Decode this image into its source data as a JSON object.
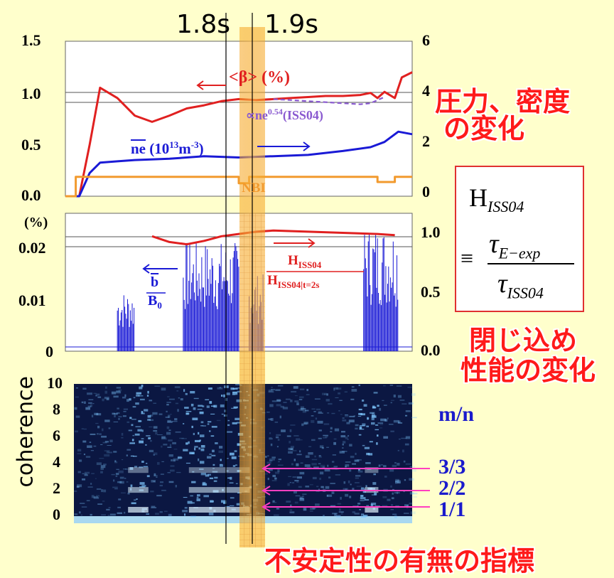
{
  "time_markers": [
    "1.8s",
    "1.9s"
  ],
  "colors": {
    "background": "#ffffcc",
    "beta": "#e02020",
    "density": "#1a1ad6",
    "nbi": "#f29a2e",
    "scaling": "#8a5ad0",
    "highlight": "#f5a623",
    "annotation": "#ff1a1a",
    "modes": "#1a1acc",
    "arrows": "#ff3fc0"
  },
  "panel1": {
    "left_ticks": [
      "1.5",
      "1.0",
      "0.5",
      "0.0"
    ],
    "right_ticks": [
      "6",
      "4",
      "2",
      "0"
    ],
    "beta_label": "<β> (%)",
    "scaling_label": "∝ne",
    "scaling_sup": "0.54",
    "scaling_tail": "(ISS04)",
    "density_label": "ne",
    "density_units": "(10",
    "density_exp": "13",
    "density_units2": "m",
    "density_exp2": "-3",
    "density_units3": ")",
    "nbi_label": "NBI"
  },
  "panel2": {
    "left_unit": "(%)",
    "left_ticks": [
      "0.02",
      "0.01",
      "0"
    ],
    "right_ticks": [
      "1.0",
      "0.5",
      "0.0"
    ],
    "b_num": "b",
    "b_den": "B",
    "b_den_sub": "0",
    "h_num": "H",
    "h_num_sub": "ISS04",
    "h_den": "H",
    "h_den_sub": "ISS04|t=2s"
  },
  "panel3": {
    "ylabel": "coherence",
    "ticks": [
      "10",
      "8",
      "6",
      "4",
      "2",
      "0"
    ],
    "modes_title": "m/n",
    "modes": [
      "3/3",
      "2/2",
      "1/1"
    ]
  },
  "annotations": {
    "pressure_density_1": "圧力、密度",
    "pressure_density_2": "の変化",
    "confinement_1": "閉じ込め",
    "confinement_2": "性能の変化",
    "instability": "不安定性の有無の指標"
  },
  "formula": {
    "h": "H",
    "h_sub": "ISS04",
    "equiv": "≡",
    "num": "τ",
    "num_sub": "E−exp",
    "den": "τ",
    "den_sub": "ISS04"
  },
  "chart_data": [
    {
      "type": "line",
      "title": "",
      "ylabel_left": "",
      "ylabel_right": "",
      "ylim_left": [
        0,
        1.5
      ],
      "ylim_right": [
        0,
        6
      ],
      "series": [
        {
          "name": "<β> (%)",
          "axis": "left",
          "x": [
            0.01,
            0.04,
            0.07,
            0.1,
            0.15,
            0.2,
            0.25,
            0.3,
            0.35,
            0.4,
            0.45,
            0.5,
            0.55,
            0.6,
            0.65,
            0.7,
            0.75,
            0.8,
            0.85,
            0.88,
            0.9,
            0.92,
            0.95,
            0.97,
            1.0
          ],
          "values": [
            0,
            0,
            0.5,
            1.05,
            0.95,
            0.78,
            0.72,
            0.78,
            0.85,
            0.88,
            0.92,
            0.94,
            0.93,
            0.94,
            0.95,
            0.96,
            0.97,
            0.97,
            0.98,
            1.0,
            0.95,
            1.01,
            0.95,
            1.15,
            1.2
          ]
        },
        {
          "name": "∝ne0.54(ISS04)",
          "axis": "left",
          "x": [
            0.6,
            0.65,
            0.7,
            0.75,
            0.8,
            0.85,
            0.88,
            0.9,
            0.92
          ],
          "values": [
            0.94,
            0.93,
            0.92,
            0.91,
            0.9,
            0.89,
            0.9,
            0.93,
            0.96
          ]
        },
        {
          "name": "ne (1013m-3)",
          "axis": "right",
          "x": [
            0.01,
            0.04,
            0.07,
            0.1,
            0.15,
            0.2,
            0.3,
            0.4,
            0.5,
            0.6,
            0.7,
            0.8,
            0.88,
            0.92,
            0.96,
            1.0
          ],
          "values": [
            0,
            0,
            0.9,
            1.3,
            1.35,
            1.4,
            1.45,
            1.55,
            1.5,
            1.55,
            1.6,
            1.75,
            1.9,
            2.1,
            2.5,
            2.4
          ]
        },
        {
          "name": "NBI",
          "axis": "right",
          "x": [
            0.0,
            0.03,
            0.03,
            0.1,
            0.5,
            0.5,
            0.53,
            0.53,
            0.9,
            0.9,
            0.95,
            0.95,
            1.0
          ],
          "values": [
            0,
            0,
            0.75,
            0.75,
            0.75,
            0.5,
            0.5,
            0.75,
            0.75,
            0.55,
            0.55,
            0.75,
            0.75
          ]
        }
      ]
    },
    {
      "type": "line",
      "ylim_left": [
        0,
        0.025
      ],
      "ylim_right": [
        0,
        1.2
      ],
      "series": [
        {
          "name": "b/B0",
          "axis": "left",
          "bursts": [
            [
              0.15,
              0.2,
              0.011
            ],
            [
              0.34,
              0.5,
              0.02
            ],
            [
              0.53,
              0.57,
              0.014
            ],
            [
              0.86,
              0.96,
              0.023
            ]
          ]
        },
        {
          "name": "HISS04/HISS04|t=2s",
          "axis": "right",
          "x": [
            0.25,
            0.3,
            0.35,
            0.4,
            0.45,
            0.5,
            0.55,
            0.6,
            0.7,
            0.8,
            0.9,
            0.95
          ],
          "values": [
            1.0,
            0.95,
            0.93,
            0.96,
            1.0,
            1.02,
            1.04,
            1.05,
            1.04,
            1.03,
            1.02,
            1.01
          ]
        }
      ]
    },
    {
      "type": "heatmap",
      "ylabel": "coherence",
      "ylim": [
        0,
        10
      ],
      "modes": [
        "3/3",
        "2/2",
        "1/1"
      ]
    }
  ]
}
